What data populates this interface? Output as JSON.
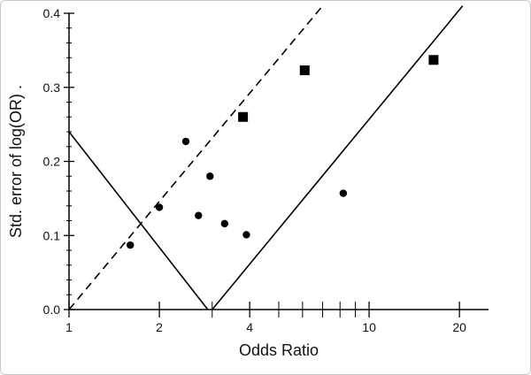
{
  "chart_data": {
    "type": "scatter",
    "title": "",
    "xlabel": "Odds Ratio",
    "ylabel": "Std. error of log(OR) .",
    "x_scale": "log",
    "xlim": [
      1,
      25
    ],
    "ylim": [
      0,
      0.4
    ],
    "x_ticks_major": [
      1,
      2,
      4,
      10,
      20
    ],
    "x_ticks_major_labels": [
      "1",
      "2",
      "4",
      "10",
      "20"
    ],
    "x_ticks_minor": [
      3,
      5,
      6,
      7,
      8,
      9
    ],
    "y_ticks": [
      0.0,
      0.1,
      0.2,
      0.3,
      0.4
    ],
    "y_tick_labels": [
      "0.0",
      "0.1",
      "0.2",
      "0.3",
      "0.4"
    ],
    "grid": false,
    "series": [
      {
        "marker": "circle",
        "points": [
          {
            "x": 1.6,
            "y": 0.087
          },
          {
            "x": 2.0,
            "y": 0.138
          },
          {
            "x": 2.45,
            "y": 0.227
          },
          {
            "x": 2.7,
            "y": 0.127
          },
          {
            "x": 2.95,
            "y": 0.18
          },
          {
            "x": 3.3,
            "y": 0.116
          },
          {
            "x": 3.9,
            "y": 0.101
          },
          {
            "x": 8.2,
            "y": 0.157
          }
        ]
      },
      {
        "marker": "square",
        "points": [
          {
            "x": 3.8,
            "y": 0.26
          },
          {
            "x": 6.1,
            "y": 0.323
          },
          {
            "x": 16.4,
            "y": 0.337
          }
        ]
      }
    ],
    "lines": [
      {
        "style": "dashed",
        "points": [
          {
            "x": 1.0,
            "y": 0.0
          },
          {
            "x": 7.0,
            "y": 0.41
          }
        ]
      },
      {
        "style": "solid",
        "points": [
          {
            "x": 1.0,
            "y": 0.24
          },
          {
            "x": 2.9,
            "y": 0.0
          }
        ]
      },
      {
        "style": "solid",
        "points": [
          {
            "x": 3.0,
            "y": 0.0
          },
          {
            "x": 20.5,
            "y": 0.41
          }
        ]
      }
    ]
  }
}
